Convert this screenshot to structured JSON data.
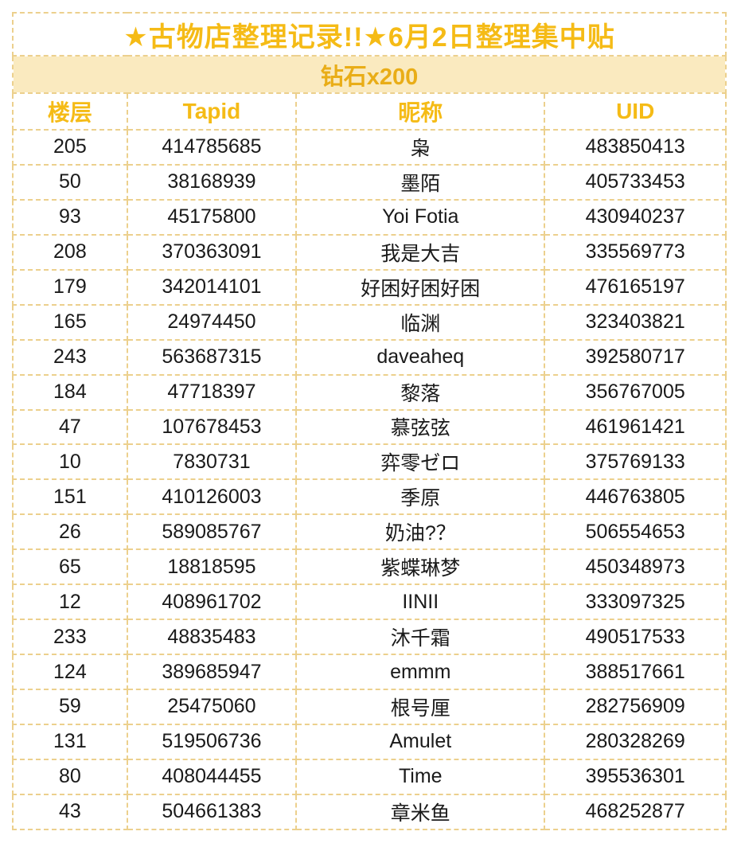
{
  "title": "★古物店整理记录!!★6月2日整理集中贴",
  "subtitle": "钻石x200",
  "columns": [
    "楼层",
    "Tapid",
    "昵称",
    "UID"
  ],
  "rows": [
    {
      "floor": "205",
      "tapid": "414785685",
      "nickname": "枭",
      "uid": "483850413"
    },
    {
      "floor": "50",
      "tapid": "38168939",
      "nickname": "墨陌",
      "uid": "405733453"
    },
    {
      "floor": "93",
      "tapid": "45175800",
      "nickname": "Yoi Fotia",
      "uid": "430940237"
    },
    {
      "floor": "208",
      "tapid": "370363091",
      "nickname": "我是大吉",
      "uid": "335569773"
    },
    {
      "floor": "179",
      "tapid": "342014101",
      "nickname": "好困好困好困",
      "uid": "476165197"
    },
    {
      "floor": "165",
      "tapid": "24974450",
      "nickname": "临渊",
      "uid": "323403821"
    },
    {
      "floor": "243",
      "tapid": "563687315",
      "nickname": "daveaheq",
      "uid": "392580717"
    },
    {
      "floor": "184",
      "tapid": "47718397",
      "nickname": "黎落",
      "uid": "356767005"
    },
    {
      "floor": "47",
      "tapid": "107678453",
      "nickname": "慕弦弦",
      "uid": "461961421"
    },
    {
      "floor": "10",
      "tapid": "7830731",
      "nickname": "弈零ゼロ",
      "uid": "375769133"
    },
    {
      "floor": "151",
      "tapid": "410126003",
      "nickname": "季原",
      "uid": "446763805"
    },
    {
      "floor": "26",
      "tapid": "589085767",
      "nickname": "奶油?？",
      "uid": "506554653"
    },
    {
      "floor": "65",
      "tapid": "18818595",
      "nickname": "紫蝶琳梦",
      "uid": "450348973"
    },
    {
      "floor": "12",
      "tapid": "408961702",
      "nickname": "IINII",
      "uid": "333097325"
    },
    {
      "floor": "233",
      "tapid": "48835483",
      "nickname": "沐千霜",
      "uid": "490517533"
    },
    {
      "floor": "124",
      "tapid": "389685947",
      "nickname": "emmm",
      "uid": "388517661"
    },
    {
      "floor": "59",
      "tapid": "25475060",
      "nickname": "根号厘",
      "uid": "282756909"
    },
    {
      "floor": "131",
      "tapid": "519506736",
      "nickname": "Amulet",
      "uid": "280328269"
    },
    {
      "floor": "80",
      "tapid": "408044455",
      "nickname": "Time",
      "uid": "395536301"
    },
    {
      "floor": "43",
      "tapid": "504661383",
      "nickname": "章米鱼",
      "uid": "468252877"
    }
  ],
  "colors": {
    "accent_gold": "#f5bb16",
    "banner_background": "#faeabf",
    "border_dash": "#ecd08d",
    "data_text": "#1a1a1a"
  }
}
